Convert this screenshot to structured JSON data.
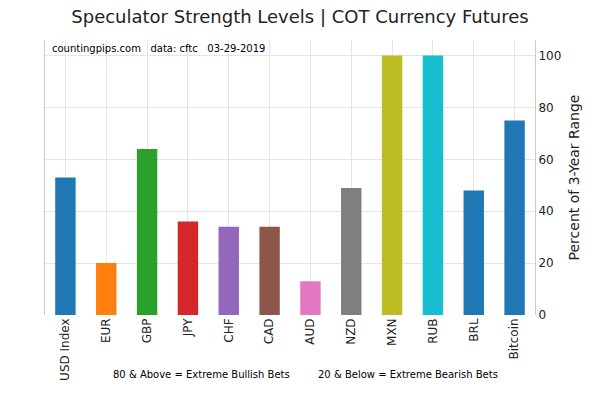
{
  "chart_data": {
    "type": "bar",
    "title": "Speculator Strength Levels | COT Currency Futures",
    "y_label": "Percent of 3-Year Range",
    "categories": [
      "USD Index",
      "EUR",
      "GBP",
      "JPY",
      "CHF",
      "CAD",
      "AUD",
      "NZD",
      "MXN",
      "RUB",
      "BRL",
      "Bitcoin"
    ],
    "values": [
      53,
      20,
      64,
      36,
      34,
      34,
      13,
      49,
      100,
      100,
      48,
      75
    ],
    "colors": [
      "#1f77b4",
      "#ff7f0e",
      "#2ca02c",
      "#d62728",
      "#9467bd",
      "#8c564b",
      "#e377c2",
      "#7f7f7f",
      "#bcbd22",
      "#17becf",
      "#1f77b4",
      "#1f77b4"
    ],
    "ylim": [
      0,
      106
    ],
    "yticks": [
      0,
      20,
      40,
      60,
      80,
      100
    ],
    "grid": true,
    "annotations": {
      "source": "countingpips.com   data: cftc   03-29-2019",
      "notes": [
        "80 & Above = Extreme Bullish Bets",
        "20 & Below = Extreme Bearish Bets"
      ]
    }
  }
}
